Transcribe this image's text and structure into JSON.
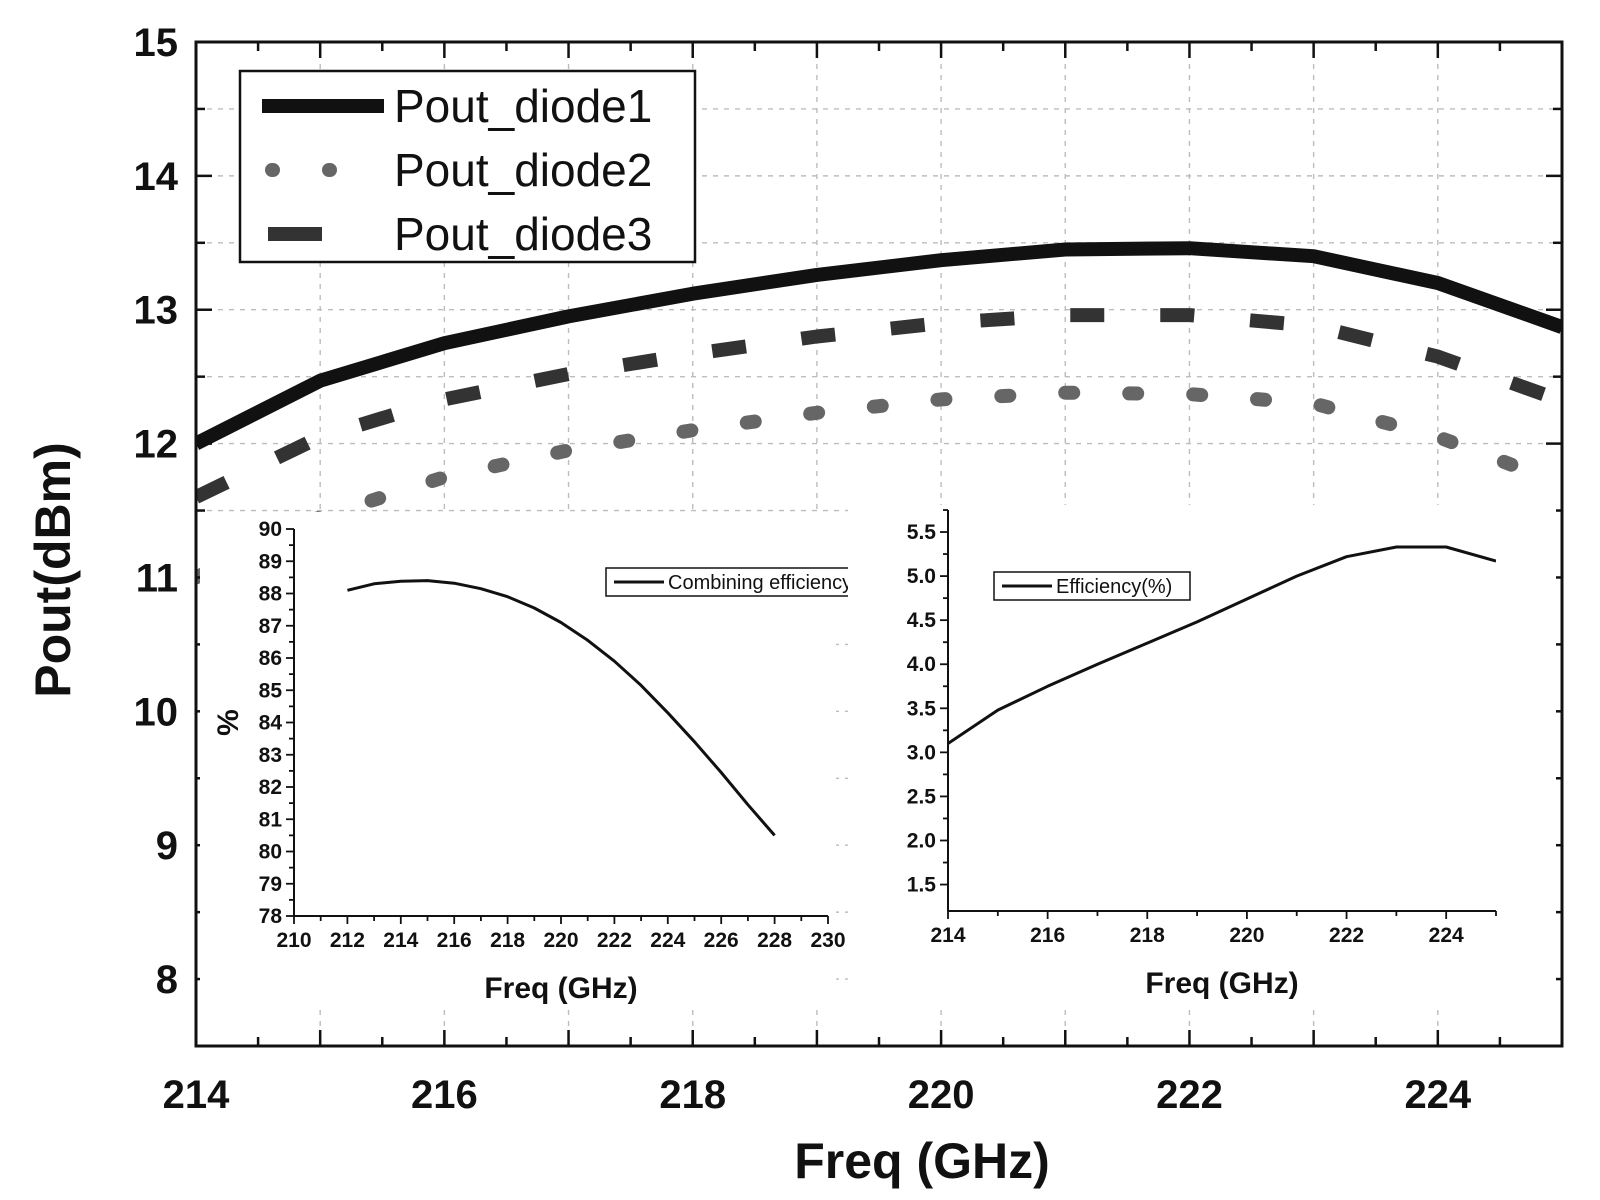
{
  "chart_data": [
    {
      "type": "line",
      "xlabel": "Freq (GHz)",
      "ylabel": "Pout(dBm)",
      "xlim": [
        214,
        225
      ],
      "ylim": [
        7.5,
        15
      ],
      "xticks": [
        "214",
        "216",
        "218",
        "220",
        "222",
        "224"
      ],
      "yticks": [
        "8",
        "9",
        "10",
        "11",
        "12",
        "13",
        "14",
        "15"
      ],
      "grid": true,
      "legend_position": "top-left",
      "series": [
        {
          "name": "Pout_diode1",
          "style": "solid",
          "color": "#111111",
          "x": [
            214,
            215,
            216,
            217,
            218,
            219,
            220,
            221,
            222,
            223,
            224,
            225
          ],
          "y": [
            12.0,
            12.47,
            12.75,
            12.95,
            13.12,
            13.26,
            13.37,
            13.45,
            13.46,
            13.4,
            13.2,
            12.87
          ]
        },
        {
          "name": "Pout_diode2",
          "style": "dotted",
          "color": "#666666",
          "x": [
            214,
            215,
            216,
            217,
            218,
            219,
            220,
            221,
            222,
            223,
            224,
            225
          ],
          "y": [
            11.0,
            11.45,
            11.75,
            11.95,
            12.1,
            12.23,
            12.33,
            12.38,
            12.37,
            12.3,
            12.05,
            11.7
          ]
        },
        {
          "name": "Pout_diode3",
          "style": "dashed",
          "color": "#333333",
          "x": [
            214,
            215,
            216,
            217,
            218,
            219,
            220,
            221,
            222,
            223,
            224,
            225
          ],
          "y": [
            11.6,
            12.05,
            12.33,
            12.52,
            12.67,
            12.8,
            12.9,
            12.96,
            12.96,
            12.88,
            12.65,
            12.32
          ]
        }
      ]
    },
    {
      "type": "line",
      "xlabel": "Freq (GHz)",
      "ylabel": "%",
      "xlim": [
        210,
        230
      ],
      "ylim": [
        78,
        90
      ],
      "xticks": [
        "210",
        "212",
        "214",
        "216",
        "218",
        "220",
        "222",
        "224",
        "226",
        "228",
        "230"
      ],
      "yticks": [
        "78",
        "79",
        "80",
        "81",
        "82",
        "83",
        "84",
        "85",
        "86",
        "87",
        "88",
        "89",
        "90"
      ],
      "legend_position": "top-right",
      "series": [
        {
          "name": "Combining efficiency",
          "x": [
            212,
            213,
            214,
            215,
            216,
            217,
            218,
            219,
            220,
            221,
            222,
            223,
            224,
            225,
            226,
            227,
            228
          ],
          "y": [
            88.1,
            88.3,
            88.38,
            88.4,
            88.32,
            88.15,
            87.9,
            87.55,
            87.1,
            86.55,
            85.9,
            85.15,
            84.3,
            83.4,
            82.45,
            81.45,
            80.5
          ]
        }
      ]
    },
    {
      "type": "line",
      "xlabel": "Freq (GHz)",
      "ylabel": "",
      "xlim": [
        214,
        225
      ],
      "ylim": [
        1.2,
        5.75
      ],
      "xticks": [
        "214",
        "216",
        "218",
        "220",
        "222",
        "224"
      ],
      "yticks": [
        "1.5",
        "2.0",
        "2.5",
        "3.0",
        "3.5",
        "4.0",
        "4.5",
        "5.0",
        "5.5"
      ],
      "legend_position": "top-left",
      "series": [
        {
          "name": "Efficiency(%)",
          "x": [
            214,
            215,
            216,
            217,
            218,
            219,
            220,
            221,
            222,
            223,
            224,
            225
          ],
          "y": [
            3.1,
            3.48,
            3.75,
            4.0,
            4.24,
            4.48,
            4.74,
            5.0,
            5.22,
            5.33,
            5.33,
            5.17
          ]
        }
      ]
    }
  ]
}
